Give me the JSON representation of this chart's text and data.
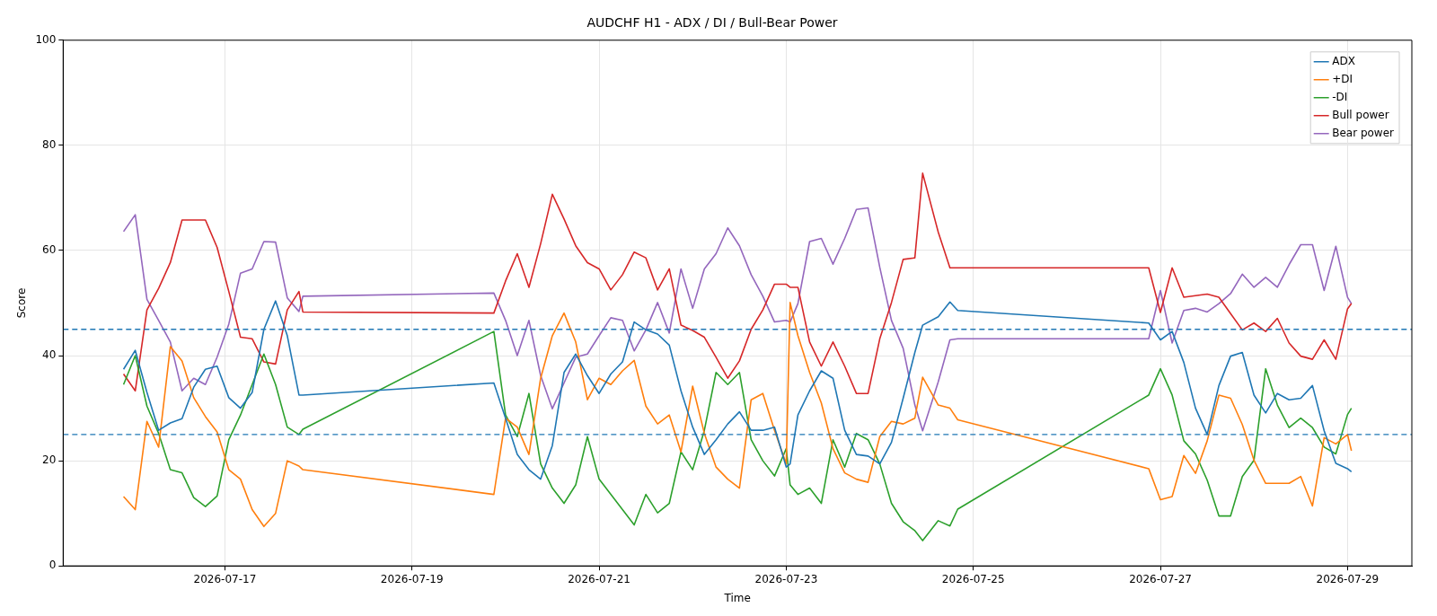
{
  "chart_data": {
    "type": "line",
    "title": "AUDCHF H1 - ADX / DI / Bull-Bear Power",
    "xlabel": "Time",
    "ylabel": "Score",
    "x": [
      "2026-07-15T22:00",
      "2026-07-16T01:00",
      "2026-07-16T04:00",
      "2026-07-16T07:00",
      "2026-07-16T10:00",
      "2026-07-16T13:00",
      "2026-07-16T16:00",
      "2026-07-16T19:00",
      "2026-07-16T22:00",
      "2026-07-17T01:00",
      "2026-07-17T04:00",
      "2026-07-17T07:00",
      "2026-07-17T10:00",
      "2026-07-17T13:00",
      "2026-07-17T16:00",
      "2026-07-17T19:00",
      "2026-07-17T20:00",
      "2026-07-19T21:00",
      "2026-07-20T00:00",
      "2026-07-20T03:00",
      "2026-07-20T06:00",
      "2026-07-20T09:00",
      "2026-07-20T12:00",
      "2026-07-20T15:00",
      "2026-07-20T18:00",
      "2026-07-20T21:00",
      "2026-07-21T00:00",
      "2026-07-21T03:00",
      "2026-07-21T06:00",
      "2026-07-21T09:00",
      "2026-07-21T12:00",
      "2026-07-21T15:00",
      "2026-07-21T18:00",
      "2026-07-21T21:00",
      "2026-07-22T00:00",
      "2026-07-22T03:00",
      "2026-07-22T06:00",
      "2026-07-22T09:00",
      "2026-07-22T12:00",
      "2026-07-22T15:00",
      "2026-07-22T18:00",
      "2026-07-22T21:00",
      "2026-07-23T00:00",
      "2026-07-23T01:00",
      "2026-07-23T03:00",
      "2026-07-23T06:00",
      "2026-07-23T09:00",
      "2026-07-23T12:00",
      "2026-07-23T15:00",
      "2026-07-23T18:00",
      "2026-07-23T21:00",
      "2026-07-24T00:00",
      "2026-07-24T03:00",
      "2026-07-24T06:00",
      "2026-07-24T09:00",
      "2026-07-24T11:00",
      "2026-07-24T15:00",
      "2026-07-24T18:00",
      "2026-07-24T20:00",
      "2026-07-26T21:00",
      "2026-07-27T00:00",
      "2026-07-27T03:00",
      "2026-07-27T06:00",
      "2026-07-27T09:00",
      "2026-07-27T12:00",
      "2026-07-27T15:00",
      "2026-07-27T18:00",
      "2026-07-27T21:00",
      "2026-07-28T00:00",
      "2026-07-28T03:00",
      "2026-07-28T06:00",
      "2026-07-28T09:00",
      "2026-07-28T12:00",
      "2026-07-28T15:00",
      "2026-07-28T18:00",
      "2026-07-28T21:00",
      "2026-07-29T00:00",
      "2026-07-29T01:00"
    ],
    "series": [
      {
        "name": "ADX",
        "color": "#1f77b4",
        "values": [
          37.4,
          41,
          33,
          25.8,
          27.2,
          28,
          34,
          37.4,
          38,
          32,
          30,
          33,
          45,
          50.4,
          43.8,
          32.5,
          32.5,
          34.8,
          28.1,
          21.2,
          18.3,
          16.5,
          22.9,
          36.8,
          40.3,
          36.2,
          32.8,
          36.5,
          38.8,
          46.4,
          44.9,
          44.1,
          42,
          33.3,
          26.4,
          21.2,
          24,
          27,
          29.3,
          25.8,
          25.8,
          26.4,
          18.8,
          19.4,
          28.7,
          33.3,
          37.1,
          35.7,
          25.8,
          21.2,
          20.9,
          19.4,
          23.5,
          31.9,
          40.6,
          45.8,
          47.4,
          50.2,
          48.6,
          46.2,
          43,
          44.6,
          38.7,
          30,
          25,
          34.3,
          39.9,
          40.6,
          32.5,
          29.1,
          32.8,
          31.6,
          31.9,
          34.3,
          25.7,
          19.5,
          18.5,
          17.9
        ]
      },
      {
        "name": "+DI",
        "color": "#ff7f0e",
        "values": [
          13.2,
          10.7,
          27.5,
          22.6,
          41.7,
          39,
          32,
          28.4,
          25.5,
          18.3,
          16.5,
          10.7,
          7.5,
          10,
          20,
          19,
          18.3,
          13.6,
          28.1,
          26.4,
          21.2,
          35.7,
          43.8,
          48.1,
          42.6,
          31.6,
          35.7,
          34.5,
          37.1,
          39.1,
          30.4,
          27,
          28.7,
          21.7,
          34.2,
          25.2,
          18.8,
          16.5,
          14.8,
          31.6,
          32.8,
          25.8,
          19.4,
          50.1,
          43.8,
          36.8,
          31,
          22.3,
          17.7,
          16.5,
          15.9,
          24.6,
          27.5,
          27,
          28.1,
          35.9,
          30.6,
          30,
          27.8,
          18.5,
          12.6,
          13.2,
          21,
          17.6,
          23.8,
          32.5,
          31.9,
          26.9,
          20.1,
          15.7,
          15.7,
          15.7,
          17,
          11.4,
          24.4,
          23.2,
          25,
          21.9
        ]
      },
      {
        "name": "-DI",
        "color": "#2ca02c",
        "values": [
          34.5,
          40,
          30.4,
          25.2,
          18.3,
          17.7,
          13,
          11.3,
          13.3,
          24,
          28.7,
          34.5,
          40.3,
          34.5,
          26.4,
          25,
          26,
          44.6,
          28.7,
          24.6,
          32.8,
          19.4,
          14.8,
          11.9,
          15.4,
          24.6,
          16.5,
          13.6,
          10.7,
          7.8,
          13.6,
          10.1,
          11.9,
          21.7,
          18.3,
          25.8,
          36.8,
          34.5,
          36.8,
          24,
          20,
          17.1,
          22.3,
          15.4,
          13.6,
          14.8,
          11.9,
          24,
          18.8,
          25.2,
          24,
          19.4,
          11.9,
          8.4,
          6.7,
          4.8,
          8.6,
          7.6,
          10.8,
          32.5,
          37.5,
          32.5,
          23.8,
          21.3,
          16.3,
          9.5,
          9.5,
          17,
          20.1,
          37.5,
          30.6,
          26.3,
          28.1,
          26.3,
          22.6,
          21.3,
          28.8,
          30
        ]
      },
      {
        "name": "Bull power",
        "color": "#d62728",
        "values": [
          36.5,
          33.3,
          48.7,
          52.8,
          57.7,
          65.8,
          65.8,
          65.8,
          60.6,
          52.2,
          43.5,
          43.2,
          38.8,
          38.4,
          48.7,
          52.2,
          48.3,
          48.1,
          54.2,
          59.4,
          53,
          61.3,
          70.7,
          66,
          60.9,
          57.7,
          56.5,
          52.5,
          55.4,
          59.7,
          58.6,
          52.5,
          56.5,
          45.8,
          44.8,
          43.5,
          39.7,
          35.7,
          39,
          45,
          48.7,
          53.6,
          53.6,
          53,
          53,
          42.6,
          38,
          42.6,
          38,
          32.8,
          32.8,
          43.2,
          50.1,
          58.3,
          58.6,
          74.7,
          63.5,
          56.7,
          56.7,
          56.7,
          48.2,
          56.7,
          51.1,
          51.4,
          51.7,
          51.1,
          48,
          44.9,
          46.2,
          44.6,
          47.1,
          42.4,
          39.9,
          39.3,
          43,
          39.3,
          48.9,
          49.9
        ]
      },
      {
        "name": "Bear power",
        "color": "#9467bd",
        "values": [
          63.6,
          66.8,
          50.7,
          46.7,
          42.6,
          33.3,
          35.7,
          34.5,
          39.7,
          46,
          55.7,
          56.5,
          61.7,
          61.6,
          51,
          48.4,
          51.3,
          51.9,
          46.7,
          40,
          46.7,
          36.2,
          29.9,
          34.8,
          39.7,
          40.3,
          43.8,
          47.2,
          46.7,
          40.9,
          44.9,
          50.1,
          44.3,
          56.5,
          49,
          56.5,
          59.4,
          64.3,
          60.9,
          55.4,
          51.3,
          46.4,
          46.7,
          46.4,
          49.9,
          61.7,
          62.3,
          57.4,
          62.3,
          67.8,
          68.1,
          56.8,
          46.7,
          41.4,
          30.6,
          25.7,
          35,
          43,
          43.2,
          43.2,
          52.4,
          42.4,
          48.6,
          49,
          48.3,
          49.9,
          51.8,
          55.5,
          53,
          54.9,
          53,
          57.3,
          61.1,
          61.1,
          52.4,
          60.8,
          51.1,
          49.9
        ]
      }
    ],
    "xlim": [
      "2026-07-15T06:30",
      "2026-07-29T16:30"
    ],
    "xticks": [
      "2026-07-17",
      "2026-07-19",
      "2026-07-21",
      "2026-07-23",
      "2026-07-25",
      "2026-07-27",
      "2026-07-29"
    ],
    "ylim": [
      0,
      100
    ],
    "yticks": [
      0,
      20,
      40,
      60,
      80,
      100
    ],
    "ref_lines": [
      {
        "axis": "y",
        "value": 45,
        "color": "#1f77b4",
        "line_style": "dashed"
      },
      {
        "axis": "y",
        "value": 25,
        "color": "#1f77b4",
        "line_style": "dashed"
      }
    ],
    "grid": true,
    "legend": "top right",
    "marker": "none",
    "line_style": "solid"
  }
}
